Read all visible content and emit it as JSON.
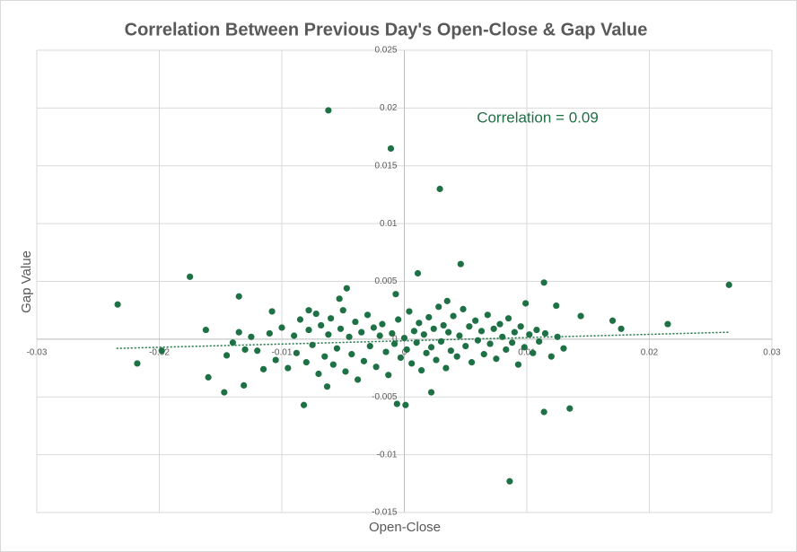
{
  "chart_data": {
    "type": "scatter",
    "title": "Correlation Between Previous  Day's Open-Close & Gap Value",
    "x_label": "Open-Close",
    "y_label": "Gap Value",
    "annotation": "Correlation = 0.09",
    "color": "#1e7145",
    "xlim": [
      -0.03,
      0.03
    ],
    "xticks": [
      -0.03,
      -0.02,
      -0.01,
      0,
      0.01,
      0.02,
      0.03
    ],
    "ylim": [
      -0.015,
      0.025
    ],
    "yticks": [
      -0.015,
      -0.01,
      -0.005,
      0,
      0.005,
      0.01,
      0.015,
      0.02,
      0.025
    ],
    "grid": true,
    "trendline": {
      "x": [
        -0.0235,
        0.0265
      ],
      "y": [
        -0.0008,
        0.0006
      ],
      "color": "#1e7145"
    },
    "x": [
      -0.0062,
      -0.0011,
      0.0029,
      0.0046,
      0.0011,
      0.0265,
      -0.0234,
      -0.0175,
      0.0114,
      0.0086,
      0.0114,
      0.0135,
      -0.0218,
      -0.0198,
      0.0215,
      0.0177,
      -0.0135,
      -0.0147,
      -0.0082,
      -0.0006,
      0.0001,
      -0.0047,
      -0.0007,
      -0.0162,
      -0.0108,
      0.0022,
      0.0099,
      0.0124,
      0.0144,
      0.017,
      -0.016,
      -0.0131,
      -0.0053,
      -0.012,
      -0.011,
      -0.0105,
      -0.01,
      -0.0095,
      -0.009,
      -0.0088,
      -0.0085,
      -0.008,
      -0.0078,
      -0.0075,
      -0.0072,
      -0.007,
      -0.0068,
      -0.0065,
      -0.0062,
      -0.006,
      -0.0058,
      -0.0055,
      -0.0052,
      -0.005,
      -0.0048,
      -0.0045,
      -0.0043,
      -0.004,
      -0.0038,
      -0.0035,
      -0.0033,
      -0.003,
      -0.0028,
      -0.0025,
      -0.0023,
      -0.002,
      -0.0018,
      -0.0015,
      -0.0013,
      -0.001,
      -0.0008,
      -0.0005,
      -0.0003,
      0,
      0.0002,
      0.0004,
      0.0006,
      0.0008,
      0.001,
      0.0012,
      0.0014,
      0.0016,
      0.0018,
      0.002,
      0.0022,
      0.0024,
      0.0026,
      0.0028,
      0.003,
      0.0032,
      0.0034,
      0.0036,
      0.0038,
      0.004,
      0.0043,
      0.0045,
      0.0048,
      0.005,
      0.0053,
      0.0055,
      0.0058,
      0.006,
      0.0063,
      0.0065,
      0.0068,
      0.007,
      0.0073,
      0.0075,
      0.0078,
      0.008,
      0.0083,
      0.0085,
      0.0088,
      0.009,
      0.0093,
      0.0095,
      0.0098,
      0.0102,
      0.0105,
      0.0108,
      0.011,
      0.0115,
      0.012,
      0.0125,
      0.013,
      -0.0115,
      -0.0125,
      -0.013,
      -0.014,
      -0.0145,
      -0.0135,
      -0.0063,
      -0.0078,
      0.0035
    ],
    "values": [
      0.0198,
      0.0165,
      0.013,
      0.0065,
      0.0057,
      0.0047,
      0.003,
      0.0054,
      0.0049,
      -0.0123,
      -0.0063,
      -0.006,
      -0.0021,
      -0.001,
      0.0013,
      0.0009,
      0.0037,
      -0.0046,
      -0.0057,
      -0.0056,
      -0.0057,
      0.0044,
      0.0039,
      0.0008,
      0.0024,
      -0.0046,
      0.0031,
      0.0029,
      0.002,
      0.0016,
      -0.0033,
      -0.004,
      0.0035,
      -0.001,
      0.0005,
      -0.0018,
      0.001,
      -0.0025,
      0.0003,
      -0.0012,
      0.0017,
      -0.002,
      0.0008,
      -0.0005,
      0.0022,
      -0.003,
      0.0012,
      -0.0015,
      0.0004,
      0.0018,
      -0.0022,
      -0.0008,
      0.0009,
      0.0025,
      -0.0028,
      0.0002,
      -0.0013,
      0.0015,
      -0.0035,
      0.0006,
      -0.0019,
      0.0021,
      -0.0006,
      0.001,
      -0.0024,
      0.0003,
      0.0013,
      -0.0011,
      -0.0031,
      0.0005,
      -0.0004,
      0.0017,
      -0.0016,
      0.0001,
      -0.0009,
      0.0024,
      -0.0021,
      0.0007,
      -0.0003,
      0.0014,
      -0.0027,
      0.0004,
      -0.0012,
      0.0019,
      -0.0007,
      0.0009,
      -0.0018,
      0.0028,
      -0.0002,
      0.0012,
      -0.0025,
      0.0006,
      -0.001,
      0.002,
      -0.0015,
      0.0003,
      0.0026,
      -0.0006,
      0.0011,
      -0.002,
      0.0016,
      -0.0001,
      0.0007,
      -0.0013,
      0.0021,
      -0.0004,
      0.0009,
      -0.0017,
      0.0013,
      0.0002,
      -0.0009,
      0.0018,
      -0.0003,
      0.0006,
      -0.0022,
      0.0011,
      -0.0007,
      0.0004,
      -0.0012,
      0.0008,
      -0.0002,
      0.0005,
      -0.0015,
      0.0002,
      -0.0008,
      -0.0026,
      0.0002,
      -0.0009,
      -0.0003,
      -0.0014,
      0.0006,
      -0.0041,
      0.0025,
      0.0033
    ]
  }
}
